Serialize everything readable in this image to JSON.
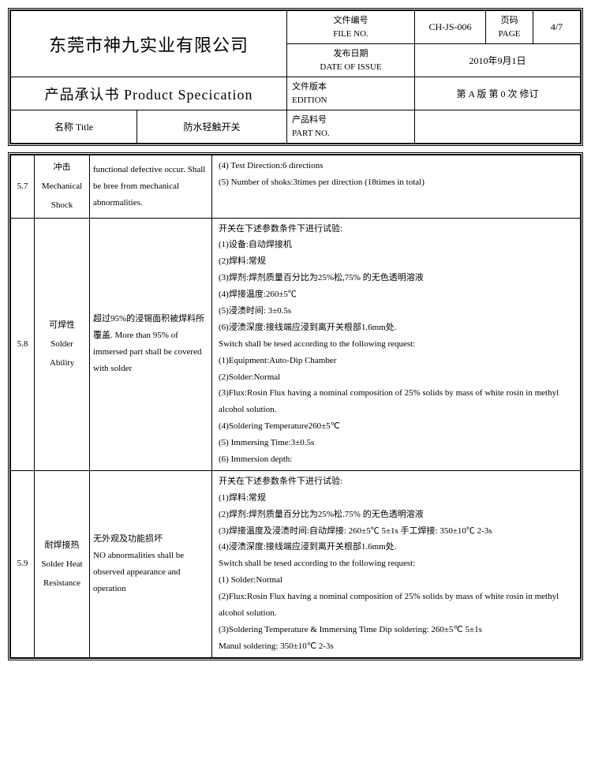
{
  "header": {
    "company": "东莞市神九实业有限公司",
    "spec_title": "产品承认书  Product  Specication",
    "file_no_label": "文件编号\nFILE NO.",
    "file_no": "CH-JS-006",
    "page_label": "页码\nPAGE",
    "page_val": "4/7",
    "issue_label": "发布日期\nDATE OF ISSUE",
    "issue_date": "2010年9月1日",
    "edition_label": "文件版本\nEDITION",
    "edition_val": "第 A 版  第 0 次 修订",
    "title_label": "名称 Title",
    "title_val": "防水轻触开关",
    "part_label": "产品料号\nPART NO.",
    "part_val": ""
  },
  "rows": [
    {
      "num": "5.7",
      "name": "冲击\nMechanical\nShock",
      "crit": "functional defective occur. Shall be bree from mechanical abnormalities.",
      "detail": "(4)  Test Direction:6 directions\n(5)  Number of shoks:3times per direction (18times in total)"
    },
    {
      "num": "5.8",
      "name": "可焊性\nSolder\nAbility",
      "crit": "超过95%的浸锡面积被焊料所覆盖.  More than 95% of immersed part shall be covered with solder",
      "detail": "开关在下述参数条件下进行试验:\n(1)设备:自动焊接机\n(2)焊料:常规\n(3)焊剂:焊剂质量百分比为25%松,75%  的无色透明溶液\n(4)焊接温度:260±5℃\n(5)浸渍时间: 3±0.5s\n(6)浸渍深度:接线端应浸到离开关根部1.6mm处.\nSwitch shall be tesed according to the following request:\n(1)Equipment:Auto-Dip Chamber\n(2)Solder:Normal\n(3)Flux:Rosin Flux having a nominal composition of 25% solids by mass of white rosin in methyl alcohol solution.\n(4)Soldering Temperature260±5℃\n(5) Immersing Time:3±0.5s\n(6) Immersion depth:"
    },
    {
      "num": "5.9",
      "name": "耐焊接热\nSolder Heat\nResistance",
      "crit": "无外观及功能损坏\nNO abnormalities shall be observed appearance and operation",
      "detail": "开关在下述参数条件下进行试验:\n(1)焊料:常规\n(2)焊剂:焊剂质量百分比为25%松.75%  的无色透明溶液\n(3)焊接温度及浸渍时间:自动焊接: 260±5℃ 5±1s 手工焊接: 350±10℃  2-3s\n(4)浸渍深度:接线端应浸到离开关根部1.6mm处.\n Switch shall be tesed according to the following request:\n(1) Solder:Normal\n (2)Flux:Rosin Flux having a nominal composition of 25% solids by mass of white rosin in methyl  alcohol solution.\n(3)Soldering Temperature & Immersing Time  Dip soldering:  260±5℃ 5±1s\nManul soldering:  350±10℃  2-3s"
    }
  ]
}
